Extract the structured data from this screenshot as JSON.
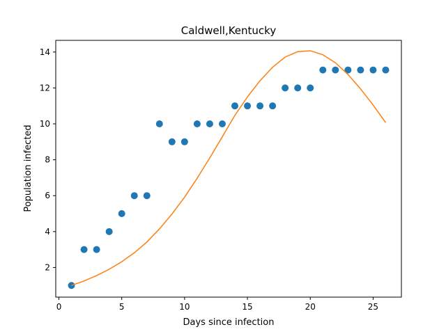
{
  "chart_data": {
    "type": "scatter",
    "title": "Caldwell,Kentucky",
    "xlabel": "Days since infection",
    "ylabel": "Population infected",
    "xlim": [
      -0.25,
      27.25
    ],
    "ylim": [
      0.35,
      14.65
    ],
    "xticks": [
      0,
      5,
      10,
      15,
      20,
      25
    ],
    "yticks": [
      2,
      4,
      6,
      8,
      10,
      12,
      14
    ],
    "grid": false,
    "series": [
      {
        "kind": "scatter",
        "color": "#1f77b4",
        "x": [
          1,
          2,
          3,
          4,
          5,
          6,
          7,
          8,
          9,
          10,
          11,
          12,
          13,
          14,
          15,
          16,
          17,
          18,
          19,
          20,
          21,
          22,
          23,
          24,
          25,
          26
        ],
        "y": [
          1,
          3,
          3,
          4,
          5,
          6,
          6,
          10,
          9,
          9,
          10,
          10,
          10,
          11,
          11,
          11,
          11,
          12,
          12,
          12,
          13,
          13,
          13,
          13,
          13,
          13
        ]
      },
      {
        "kind": "line",
        "color": "#ff7f0e",
        "x": [
          1,
          2,
          3,
          4,
          5,
          6,
          7,
          8,
          9,
          10,
          11,
          12,
          13,
          14,
          15,
          16,
          17,
          18,
          19,
          20,
          21,
          22,
          23,
          24,
          25,
          26
        ],
        "y": [
          1.0,
          1.25,
          1.55,
          1.9,
          2.32,
          2.82,
          3.42,
          4.15,
          4.98,
          5.92,
          6.97,
          8.1,
          9.28,
          10.47,
          11.5,
          12.4,
          13.15,
          13.72,
          14.02,
          14.07,
          13.85,
          13.4,
          12.75,
          11.95,
          11.05,
          10.07
        ]
      }
    ]
  }
}
